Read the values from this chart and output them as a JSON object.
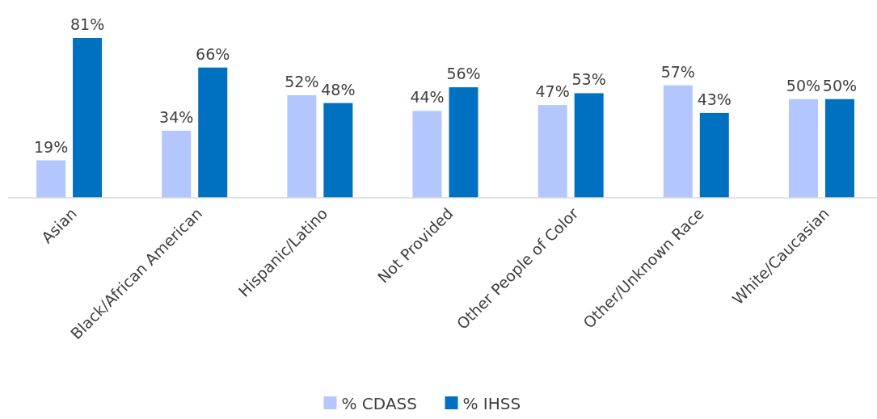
{
  "chart_data": {
    "type": "bar",
    "categories": [
      "Asian",
      "Black/African American",
      "Hispanic/Latino",
      "Not Provided",
      "Other People of Color",
      "Other/Unknown Race",
      "White/Caucasian"
    ],
    "series": [
      {
        "name": "% CDASS",
        "color": "#b4c6fe",
        "values": [
          19,
          34,
          52,
          44,
          47,
          57,
          50
        ],
        "value_labels": [
          "19%",
          "34%",
          "52%",
          "44%",
          "47%",
          "57%",
          "50%"
        ]
      },
      {
        "name": "% IHSS",
        "color": "#0070c0",
        "values": [
          81,
          66,
          48,
          56,
          53,
          43,
          50
        ],
        "value_labels": [
          "81%",
          "66%",
          "48%",
          "56%",
          "53%",
          "43%",
          "50%"
        ]
      }
    ],
    "legend": "bottom"
  }
}
